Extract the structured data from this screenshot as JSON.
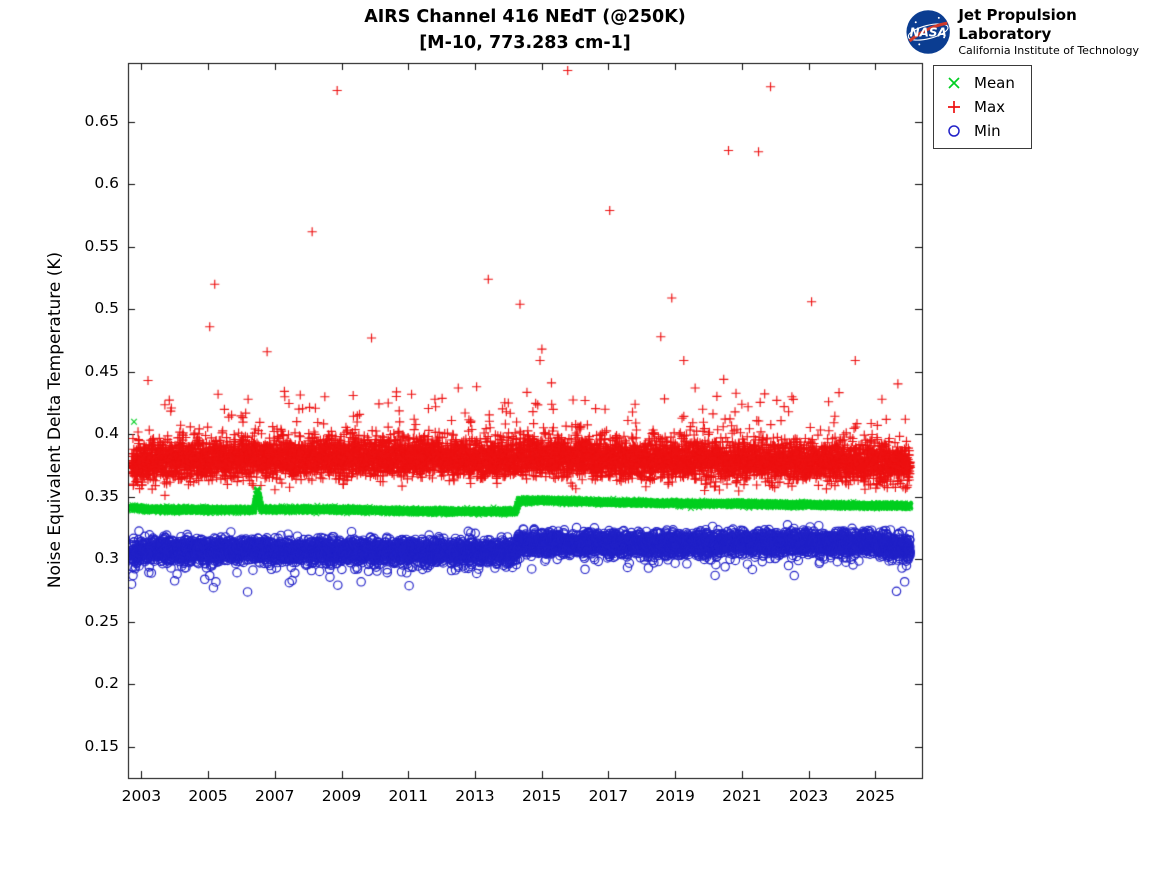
{
  "header": {
    "logo": {
      "nasa_label": "NASA",
      "org_line1": "Jet Propulsion Laboratory",
      "org_line2": "California Institute of Technology"
    }
  },
  "chart_data": {
    "type": "scatter",
    "title": "AIRS Channel 416 NEdT (@250K)",
    "subtitle": "[M-10, 773.283 cm-1]",
    "xlabel": "",
    "ylabel": "Noise Equivalent Delta Temperature (K)",
    "xlim": [
      2002.6,
      2026.4
    ],
    "ylim": [
      0.125,
      0.697
    ],
    "xticks": [
      2003,
      2005,
      2007,
      2009,
      2011,
      2013,
      2015,
      2017,
      2019,
      2021,
      2023,
      2025
    ],
    "xtick_labels": [
      "2003",
      "2005",
      "2007",
      "2009",
      "2011",
      "2013",
      "2015",
      "2017",
      "2019",
      "2021",
      "2023",
      "2025"
    ],
    "yticks": [
      0.15,
      0.2,
      0.25,
      0.3,
      0.35,
      0.4,
      0.45,
      0.5,
      0.55,
      0.6,
      0.65
    ],
    "ytick_labels": [
      "0.15",
      "0.2",
      "0.25",
      "0.3",
      "0.35",
      "0.4",
      "0.45",
      "0.5",
      "0.55",
      "0.6",
      "0.65"
    ],
    "grid": false,
    "x_start": 2002.7,
    "x_end": 2026.05,
    "seed": 42,
    "legend": {
      "position": "outside-top-right",
      "entries": [
        {
          "label": "Mean",
          "marker": "x",
          "color": "#00cf21"
        },
        {
          "label": "Max",
          "marker": "+",
          "color": "#ed1111"
        },
        {
          "label": "Min",
          "marker": "o",
          "color": "#2121c8"
        }
      ]
    },
    "series": [
      {
        "name": "Max",
        "marker": "+",
        "color": "#ed1111",
        "points_per_year": 320,
        "noise_sd": 0.0075,
        "marker_size": 4.6,
        "tail": {
          "prob": 0.12,
          "scale": 0.011
        },
        "baseline": [
          [
            2002.7,
            0.374
          ],
          [
            2003.5,
            0.379
          ],
          [
            2006.0,
            0.38
          ],
          [
            2009.0,
            0.381
          ],
          [
            2012.0,
            0.381
          ],
          [
            2014.22,
            0.379
          ],
          [
            2014.32,
            0.382
          ],
          [
            2016.0,
            0.3815
          ],
          [
            2019.0,
            0.379
          ],
          [
            2022.0,
            0.3775
          ],
          [
            2024.0,
            0.377
          ],
          [
            2026.05,
            0.376
          ]
        ],
        "outliers": [
          [
            2003.2,
            0.443
          ],
          [
            2003.9,
            0.421
          ],
          [
            2005.05,
            0.486
          ],
          [
            2005.2,
            0.52
          ],
          [
            2005.3,
            0.432
          ],
          [
            2006.2,
            0.428
          ],
          [
            2006.77,
            0.466
          ],
          [
            2007.3,
            0.43
          ],
          [
            2008.12,
            0.562
          ],
          [
            2008.5,
            0.43
          ],
          [
            2008.87,
            0.675
          ],
          [
            2009.35,
            0.431
          ],
          [
            2009.9,
            0.477
          ],
          [
            2010.4,
            0.425
          ],
          [
            2011.1,
            0.432
          ],
          [
            2011.8,
            0.428
          ],
          [
            2012.5,
            0.437
          ],
          [
            2013.05,
            0.438
          ],
          [
            2013.4,
            0.524
          ],
          [
            2014.0,
            0.425
          ],
          [
            2014.35,
            0.504
          ],
          [
            2014.95,
            0.459
          ],
          [
            2015.3,
            0.424
          ],
          [
            2015.78,
            0.691
          ],
          [
            2016.3,
            0.427
          ],
          [
            2016.9,
            0.42
          ],
          [
            2017.04,
            0.579
          ],
          [
            2017.8,
            0.424
          ],
          [
            2018.57,
            0.478
          ],
          [
            2018.9,
            0.509
          ],
          [
            2019.26,
            0.459
          ],
          [
            2019.6,
            0.437
          ],
          [
            2020.6,
            0.627
          ],
          [
            2021.0,
            0.424
          ],
          [
            2021.5,
            0.626
          ],
          [
            2021.86,
            0.678
          ],
          [
            2022.5,
            0.43
          ],
          [
            2023.09,
            0.506
          ],
          [
            2023.6,
            0.426
          ],
          [
            2024.4,
            0.459
          ],
          [
            2025.2,
            0.428
          ],
          [
            2025.9,
            0.412
          ]
        ]
      },
      {
        "name": "Min",
        "marker": "o",
        "color": "#2121c8",
        "points_per_year": 300,
        "noise_sd": 0.0045,
        "marker_size": 4.2,
        "tail": {
          "prob": 0.04,
          "scale": -0.006
        },
        "baseline": [
          [
            2002.7,
            0.3045
          ],
          [
            2003.5,
            0.3075
          ],
          [
            2006.0,
            0.307
          ],
          [
            2010.0,
            0.306
          ],
          [
            2014.22,
            0.3055
          ],
          [
            2014.32,
            0.3125
          ],
          [
            2016.0,
            0.3125
          ],
          [
            2019.0,
            0.312
          ],
          [
            2022.0,
            0.3135
          ],
          [
            2025.0,
            0.313
          ],
          [
            2026.05,
            0.309
          ]
        ],
        "outliers": [
          [
            2002.75,
            0.287
          ],
          [
            2003.3,
            0.289
          ],
          [
            2004.9,
            0.284
          ],
          [
            2005.05,
            0.287
          ],
          [
            2006.9,
            0.292
          ],
          [
            2007.6,
            0.289
          ],
          [
            2008.1,
            0.291
          ],
          [
            2009.4,
            0.292
          ],
          [
            2010.8,
            0.29
          ],
          [
            2012.3,
            0.291
          ],
          [
            2013.6,
            0.293
          ],
          [
            2016.3,
            0.292
          ],
          [
            2018.2,
            0.293
          ],
          [
            2020.5,
            0.294
          ],
          [
            2022.4,
            0.295
          ],
          [
            2025.8,
            0.293
          ],
          [
            2025.88,
            0.282
          ]
        ]
      },
      {
        "name": "Mean",
        "marker": "x",
        "color": "#00cf21",
        "points_per_year": 330,
        "noise_sd": 0.0009,
        "marker_size": 3.4,
        "tail": null,
        "baseline": [
          [
            2002.7,
            0.3415
          ],
          [
            2003.2,
            0.34
          ],
          [
            2005.0,
            0.3395
          ],
          [
            2006.38,
            0.3395
          ],
          [
            2006.48,
            0.356
          ],
          [
            2006.6,
            0.3398
          ],
          [
            2009.0,
            0.3398
          ],
          [
            2011.0,
            0.3385
          ],
          [
            2013.5,
            0.3382
          ],
          [
            2014.22,
            0.3382
          ],
          [
            2014.32,
            0.347
          ],
          [
            2015.5,
            0.3468
          ],
          [
            2017.0,
            0.3455
          ],
          [
            2019.0,
            0.3448
          ],
          [
            2021.0,
            0.3442
          ],
          [
            2023.0,
            0.3435
          ],
          [
            2026.05,
            0.3428
          ]
        ],
        "outliers": [
          [
            2002.78,
            0.41
          ]
        ]
      }
    ]
  }
}
